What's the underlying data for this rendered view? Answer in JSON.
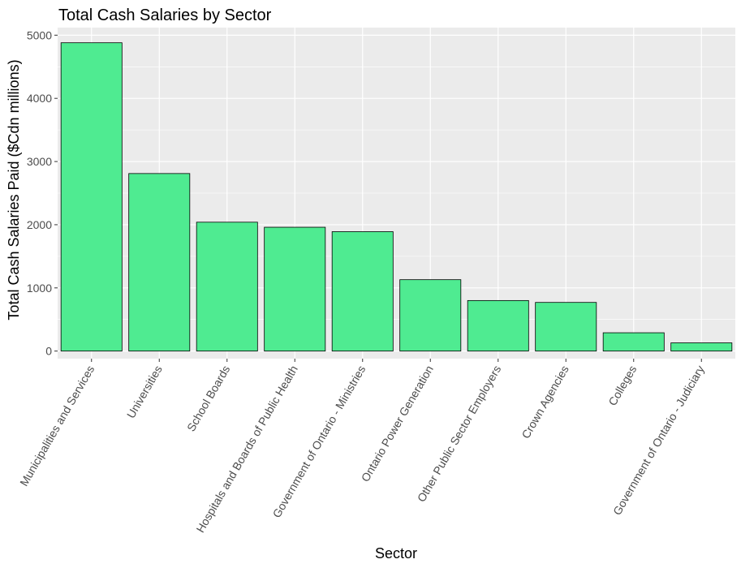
{
  "chart_data": {
    "type": "bar",
    "title": "Total Cash Salaries by Sector",
    "xlabel": "Sector",
    "ylabel": "Total Cash Salaries Paid ($Cdn millions)",
    "categories": [
      "Municipalities and Services",
      "Universities",
      "School Boards",
      "Hospitals and Boards of Public Health",
      "Government of Ontario - Ministries",
      "Ontario Power Generation",
      "Other Public Sector Employers",
      "Crown Agencies",
      "Colleges",
      "Government of Ontario - Judiciary"
    ],
    "values": [
      4880,
      2810,
      2040,
      1960,
      1890,
      1130,
      800,
      770,
      290,
      130
    ],
    "yticks": [
      0,
      1000,
      2000,
      3000,
      4000,
      5000
    ],
    "ylim": [
      -120,
      5120
    ],
    "bar_color": "#4FEB91",
    "bar_outline_color": "#000000",
    "panel_background": "#EBEBEB",
    "grid_color": "#FFFFFF",
    "grid": true,
    "legend": "none"
  }
}
